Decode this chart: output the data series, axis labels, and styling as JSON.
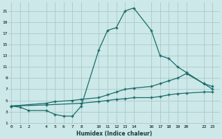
{
  "xlabel": "Humidex (Indice chaleur)",
  "bg_color": "#cce8e8",
  "grid_color": "#b0cccc",
  "line_color": "#1a6b6b",
  "line1_x": [
    0,
    1,
    2,
    4,
    5,
    6,
    7,
    8,
    10,
    11,
    12,
    13,
    14,
    16,
    17,
    18,
    19,
    20,
    22,
    23
  ],
  "line1_y": [
    4.0,
    3.8,
    3.2,
    3.2,
    2.5,
    2.2,
    2.2,
    4.0,
    14.0,
    17.5,
    18.0,
    21.0,
    21.5,
    17.5,
    13.0,
    12.5,
    11.0,
    10.0,
    8.0,
    7.0
  ],
  "line2_x": [
    0,
    4,
    5,
    7,
    8,
    10,
    11,
    12,
    13,
    14,
    16,
    17,
    18,
    19,
    20,
    22,
    23
  ],
  "line2_y": [
    4.0,
    4.5,
    4.8,
    5.0,
    5.2,
    5.5,
    6.0,
    6.5,
    7.0,
    7.2,
    7.5,
    8.0,
    8.5,
    9.0,
    9.8,
    8.0,
    7.5
  ],
  "line3_x": [
    0,
    4,
    8,
    10,
    11,
    12,
    13,
    14,
    16,
    17,
    18,
    19,
    20,
    22,
    23
  ],
  "line3_y": [
    4.0,
    4.2,
    4.5,
    4.8,
    5.0,
    5.2,
    5.3,
    5.5,
    5.5,
    5.7,
    6.0,
    6.2,
    6.3,
    6.5,
    6.5
  ],
  "xlim": [
    -0.3,
    23.8
  ],
  "ylim": [
    0.8,
    22.5
  ],
  "xticks": [
    0,
    1,
    2,
    4,
    5,
    6,
    7,
    8,
    10,
    11,
    12,
    13,
    14,
    16,
    17,
    18,
    19,
    20,
    22,
    23
  ],
  "yticks": [
    1,
    3,
    5,
    7,
    9,
    11,
    13,
    15,
    17,
    19,
    21
  ],
  "xtick_labels": [
    "0",
    "1",
    "2",
    "4",
    "5",
    "6",
    "7",
    "8",
    "10",
    "11",
    "12",
    "13",
    "14",
    "16",
    "17",
    "18",
    "19",
    "20",
    "22",
    "23"
  ],
  "ytick_labels": [
    "1",
    "3",
    "5",
    "7",
    "9",
    "11",
    "13",
    "15",
    "17",
    "19",
    "21"
  ]
}
